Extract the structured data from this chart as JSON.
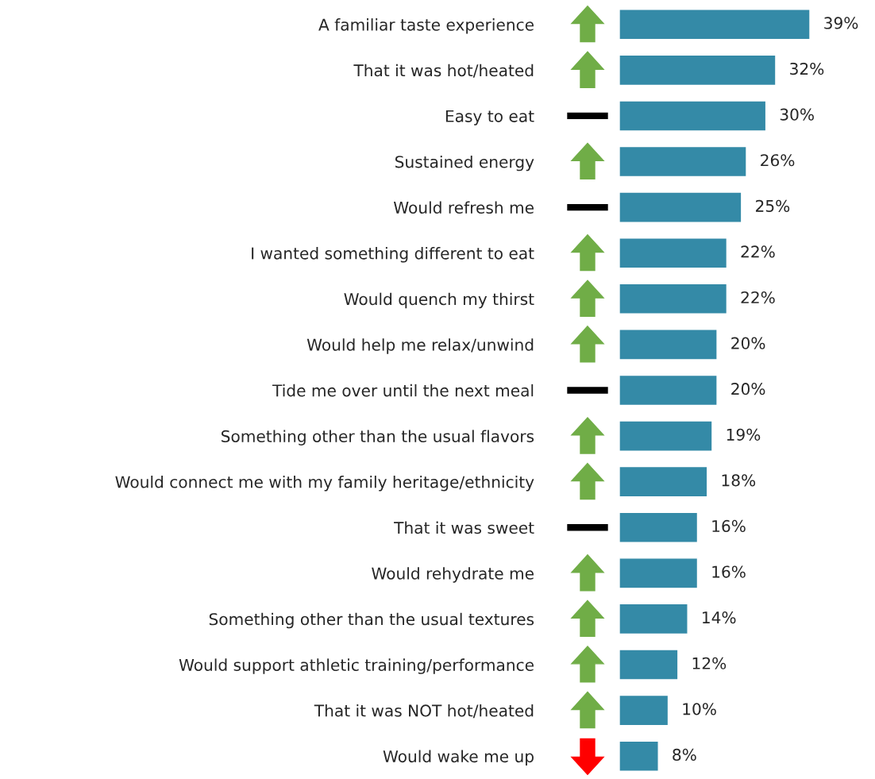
{
  "chart_data": {
    "type": "bar",
    "orientation": "horizontal",
    "categories": [
      "A familiar taste experience",
      "That it was hot/heated",
      "Easy to eat",
      "Sustained energy",
      "Would refresh me",
      "I wanted something different to eat",
      "Would quench my thirst",
      "Would help me relax/unwind",
      "Tide me over until the next meal",
      "Something other than the usual flavors",
      "Would connect me with my family heritage/ethnicity",
      "That it was sweet",
      "Would rehydrate me",
      "Something other than the usual textures",
      "Would support athletic training/performance",
      "That it was NOT hot/heated",
      "Would wake me up"
    ],
    "values": [
      39,
      32,
      30,
      26,
      25,
      22,
      22,
      20,
      20,
      19,
      18,
      16,
      16,
      14,
      12,
      10,
      8
    ],
    "value_labels": [
      "39%",
      "32%",
      "30%",
      "26%",
      "25%",
      "22%",
      "22%",
      "20%",
      "20%",
      "19%",
      "18%",
      "16%",
      "16%",
      "14%",
      "12%",
      "10%",
      "8%"
    ],
    "color": "#348aa7",
    "tick_labels": "y",
    "grid": false,
    "legend": false
  }
}
